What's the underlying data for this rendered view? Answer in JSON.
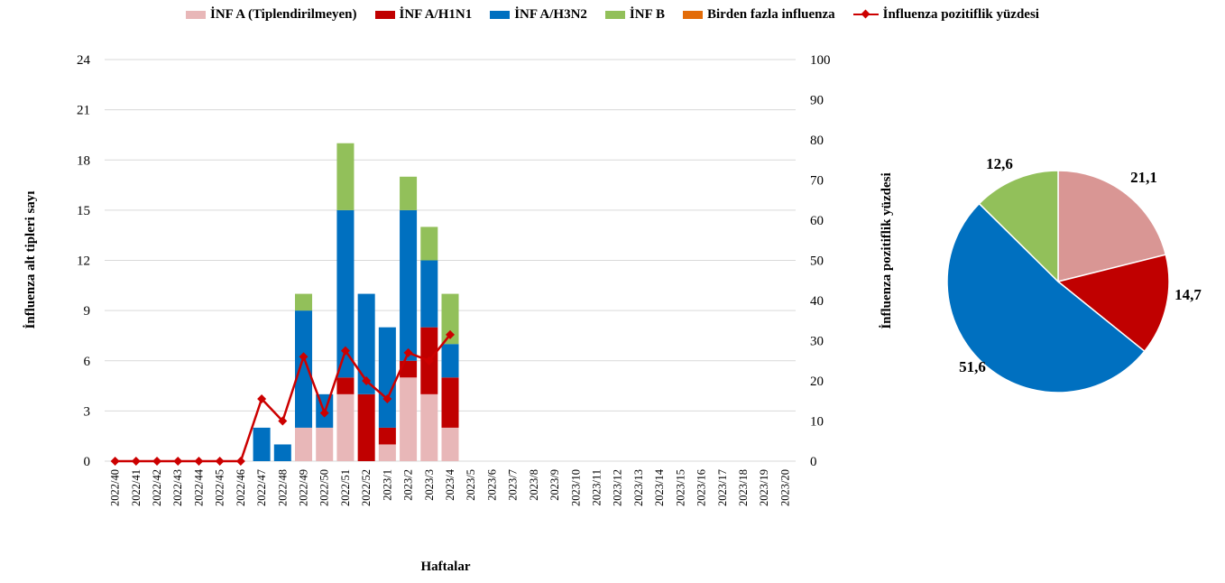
{
  "legend": [
    {
      "label": "İNF A (Tiplendirilmeyen)",
      "color": "#e8b7b8",
      "kind": "swatch"
    },
    {
      "label": "İNF A/H1N1",
      "color": "#c00000",
      "kind": "swatch"
    },
    {
      "label": "İNF A/H3N2",
      "color": "#0070c0",
      "kind": "swatch"
    },
    {
      "label": "İNF B",
      "color": "#92c05a",
      "kind": "swatch"
    },
    {
      "label": "Birden fazla influenza",
      "color": "#e36c09",
      "kind": "swatch"
    },
    {
      "label": "İnfluenza pozitiflik yüzdesi",
      "color": "#cc0000",
      "kind": "line"
    }
  ],
  "chart_data": [
    {
      "type": "bar",
      "stacked": true,
      "xlabel": "Haftalar",
      "ylabel": "İnfluenza alt tipleri sayı",
      "y2label": "İnfluenza pozitiflik yüzdesi",
      "ylim": [
        0,
        24
      ],
      "yticks": [
        0,
        3,
        6,
        9,
        12,
        15,
        18,
        21,
        24
      ],
      "y2lim": [
        0,
        100
      ],
      "y2ticks": [
        0,
        10,
        20,
        30,
        40,
        50,
        60,
        70,
        80,
        90,
        100
      ],
      "grid": true,
      "legend_position": "top",
      "categories": [
        "2022/40",
        "2022/41",
        "2022/42",
        "2022/43",
        "2022/44",
        "2022/45",
        "2022/46",
        "2022/47",
        "2022/48",
        "2022/49",
        "2022/50",
        "2022/51",
        "2022/52",
        "2023/1",
        "2023/2",
        "2023/3",
        "2023/4",
        "2023/5",
        "2023/6",
        "2023/7",
        "2023/8",
        "2023/9",
        "2023/10",
        "2023/11",
        "2023/12",
        "2023/13",
        "2023/14",
        "2023/15",
        "2023/16",
        "2023/17",
        "2023/18",
        "2023/19",
        "2023/20"
      ],
      "series": [
        {
          "name": "İNF A (Tiplendirilmeyen)",
          "color": "#e8b7b8",
          "values": [
            0,
            0,
            0,
            0,
            0,
            0,
            0,
            0,
            0,
            2,
            2,
            4,
            0,
            1,
            5,
            4,
            2,
            0,
            0,
            0,
            0,
            0,
            0,
            0,
            0,
            0,
            0,
            0,
            0,
            0,
            0,
            0,
            0
          ]
        },
        {
          "name": "İNF A/H1N1",
          "color": "#c00000",
          "values": [
            0,
            0,
            0,
            0,
            0,
            0,
            0,
            0,
            0,
            0,
            0,
            1,
            4,
            1,
            1,
            4,
            3,
            0,
            0,
            0,
            0,
            0,
            0,
            0,
            0,
            0,
            0,
            0,
            0,
            0,
            0,
            0,
            0
          ]
        },
        {
          "name": "İNF A/H3N2",
          "color": "#0070c0",
          "values": [
            0,
            0,
            0,
            0,
            0,
            0,
            0,
            2,
            1,
            7,
            2,
            10,
            6,
            6,
            9,
            4,
            2,
            0,
            0,
            0,
            0,
            0,
            0,
            0,
            0,
            0,
            0,
            0,
            0,
            0,
            0,
            0,
            0
          ]
        },
        {
          "name": "İNF B",
          "color": "#92c05a",
          "values": [
            0,
            0,
            0,
            0,
            0,
            0,
            0,
            0,
            0,
            1,
            0,
            4,
            0,
            0,
            2,
            2,
            3,
            0,
            0,
            0,
            0,
            0,
            0,
            0,
            0,
            0,
            0,
            0,
            0,
            0,
            0,
            0,
            0
          ]
        },
        {
          "name": "Birden fazla influenza",
          "color": "#e36c09",
          "values": [
            0,
            0,
            0,
            0,
            0,
            0,
            0,
            0,
            0,
            0,
            0,
            0,
            0,
            0,
            0,
            0,
            0,
            0,
            0,
            0,
            0,
            0,
            0,
            0,
            0,
            0,
            0,
            0,
            0,
            0,
            0,
            0,
            0
          ]
        }
      ],
      "line_series": {
        "name": "İnfluenza pozitiflik yüzdesi",
        "color": "#cc0000",
        "axis": "right",
        "values": [
          0,
          0,
          0,
          0,
          0,
          0,
          0,
          15.5,
          10,
          26,
          12,
          27.5,
          20,
          15.5,
          27,
          25,
          31.5
        ]
      }
    },
    {
      "type": "pie",
      "labels": [
        "İNF A (Tiplendirilmeyen)",
        "İNF A/H1N1",
        "İNF A/H3N2",
        "İNF B"
      ],
      "values": [
        21.1,
        14.7,
        51.6,
        12.6
      ],
      "value_labels": [
        "21,1",
        "14,7",
        "51,6",
        "12,6"
      ],
      "colors": [
        "#d99694",
        "#c00000",
        "#0070c0",
        "#92c05a"
      ]
    }
  ]
}
